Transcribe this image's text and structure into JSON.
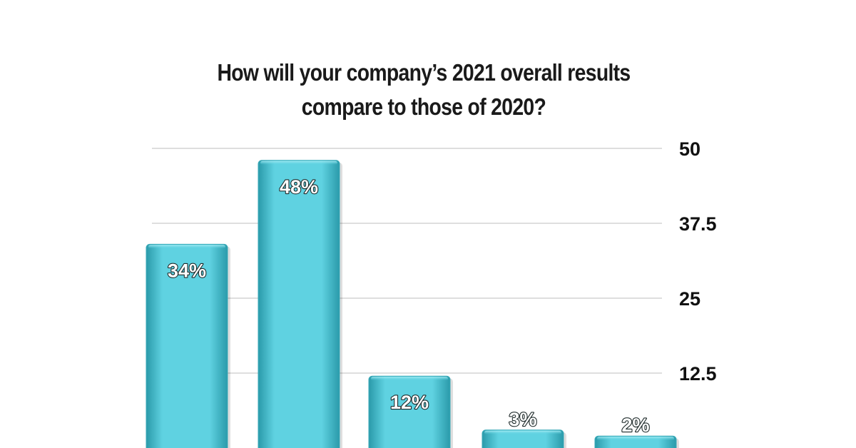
{
  "chart_data": {
    "type": "bar",
    "title_lines": [
      "How will your company’s 2021 overall results",
      "compare to those of 2020?"
    ],
    "values": [
      34,
      48,
      12,
      3,
      2
    ],
    "data_labels": [
      "34%",
      "48%",
      "12%",
      "3%",
      "2%"
    ],
    "y_ticks": [
      12.5,
      25,
      37.5,
      50
    ],
    "y_tick_labels": [
      "12.5",
      "25",
      "37.5",
      "50"
    ],
    "ylim": [
      0,
      50
    ],
    "y_axis_side": "right",
    "grid": true,
    "legend": "none",
    "bar_color": "#5fd2e1",
    "bar_shade_color": "#2a9aaa"
  }
}
